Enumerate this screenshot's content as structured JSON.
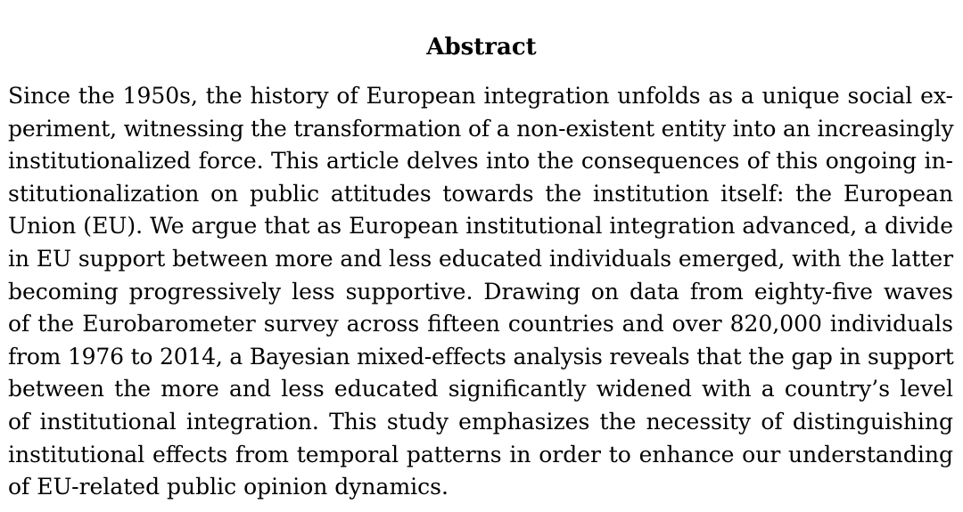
{
  "abstract": {
    "heading": "Abstract",
    "lines": [
      "Since the 1950s, the history of European integration unfolds as a unique social ex-",
      "periment, witnessing the transformation of a non-existent entity into an increasingly",
      "institutionalized force. This article delves into the consequences of this ongoing in-",
      "stitutionalization on public attitudes towards the institution itself: the European",
      "Union (EU). We argue that as European institutional integration advanced, a divide",
      "in EU support between more and less educated individuals emerged, with the latter",
      "becoming progressively less supportive. Drawing on data from eighty-five waves",
      "of the Eurobarometer survey across fifteen countries and over 820,000 individuals",
      "from 1976 to 2014, a Bayesian mixed-effects analysis reveals that the gap in support",
      "between the more and less educated significantly widened with a country’s level",
      "of institutional integration. This study emphasizes the necessity of distinguishing",
      "institutional effects from temporal patterns in order to enhance our understanding",
      "of EU-related public opinion dynamics."
    ]
  }
}
